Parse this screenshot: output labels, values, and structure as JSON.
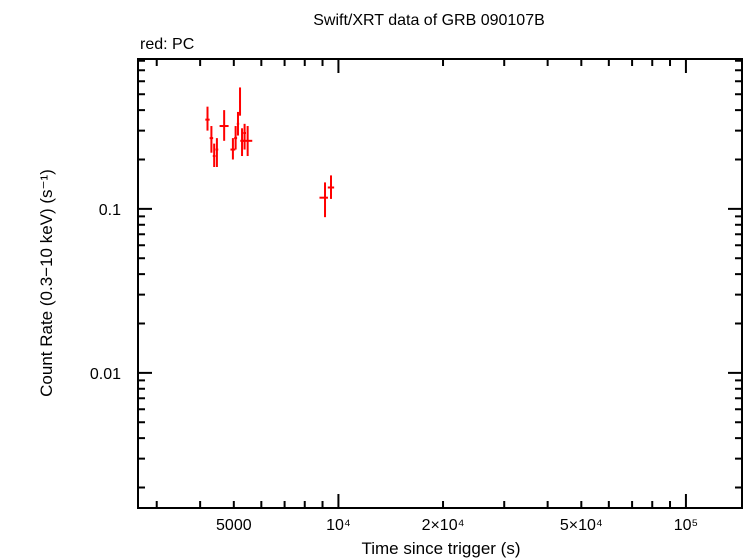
{
  "chart_data": {
    "type": "scatter",
    "title": "Swift/XRT data of GRB 090107B",
    "subtitle": "red: PC",
    "xlabel": "Time since trigger (s)",
    "ylabel": "Count Rate (0.3−10 keV) (s⁻¹)",
    "x_scale": "log",
    "y_scale": "log",
    "xlim": [
      2650,
      145000
    ],
    "ylim": [
      0.0015,
      0.82
    ],
    "x_ticks": [
      {
        "value": 5000,
        "label": "5000"
      },
      {
        "value": 10000,
        "label": "10⁴"
      },
      {
        "value": 20000,
        "label": "2×10⁴"
      },
      {
        "value": 50000,
        "label": "5×10⁴"
      },
      {
        "value": 100000,
        "label": "10⁵"
      }
    ],
    "y_ticks": [
      {
        "value": 0.1,
        "label": "0.1"
      },
      {
        "value": 0.01,
        "label": "0.01"
      }
    ],
    "series": [
      {
        "name": "PC",
        "color": "#ff0000",
        "points": [
          {
            "x": 4200,
            "y": 0.35,
            "xerr": [
              60,
              60
            ],
            "yerr": [
              0.05,
              0.07
            ]
          },
          {
            "x": 4310,
            "y": 0.27,
            "xerr": [
              50,
              50
            ],
            "yerr": [
              0.05,
              0.05
            ]
          },
          {
            "x": 4390,
            "y": 0.21,
            "xerr": [
              40,
              40
            ],
            "yerr": [
              0.03,
              0.04
            ]
          },
          {
            "x": 4470,
            "y": 0.23,
            "xerr": [
              40,
              40
            ],
            "yerr": [
              0.05,
              0.04
            ]
          },
          {
            "x": 4690,
            "y": 0.32,
            "xerr": [
              140,
              140
            ],
            "yerr": [
              0.06,
              0.08
            ]
          },
          {
            "x": 4970,
            "y": 0.23,
            "xerr": [
              80,
              80
            ],
            "yerr": [
              0.03,
              0.04
            ]
          },
          {
            "x": 5060,
            "y": 0.27,
            "xerr": [
              50,
              50
            ],
            "yerr": [
              0.04,
              0.05
            ]
          },
          {
            "x": 5140,
            "y": 0.33,
            "xerr": [
              40,
              40
            ],
            "yerr": [
              0.05,
              0.06
            ]
          },
          {
            "x": 5210,
            "y": 0.45,
            "xerr": [
              30,
              30
            ],
            "yerr": [
              0.08,
              0.1
            ]
          },
          {
            "x": 5280,
            "y": 0.26,
            "xerr": [
              60,
              60
            ],
            "yerr": [
              0.05,
              0.05
            ]
          },
          {
            "x": 5370,
            "y": 0.29,
            "xerr": [
              50,
              50
            ],
            "yerr": [
              0.06,
              0.04
            ]
          },
          {
            "x": 5480,
            "y": 0.26,
            "xerr": [
              170,
              170
            ],
            "yerr": [
              0.05,
              0.06
            ]
          },
          {
            "x": 9150,
            "y": 0.117,
            "xerr": [
              330,
              180
            ],
            "yerr": [
              0.028,
              0.028
            ]
          },
          {
            "x": 9520,
            "y": 0.135,
            "xerr": [
              200,
              200
            ],
            "yerr": [
              0.02,
              0.025
            ]
          }
        ]
      }
    ]
  }
}
